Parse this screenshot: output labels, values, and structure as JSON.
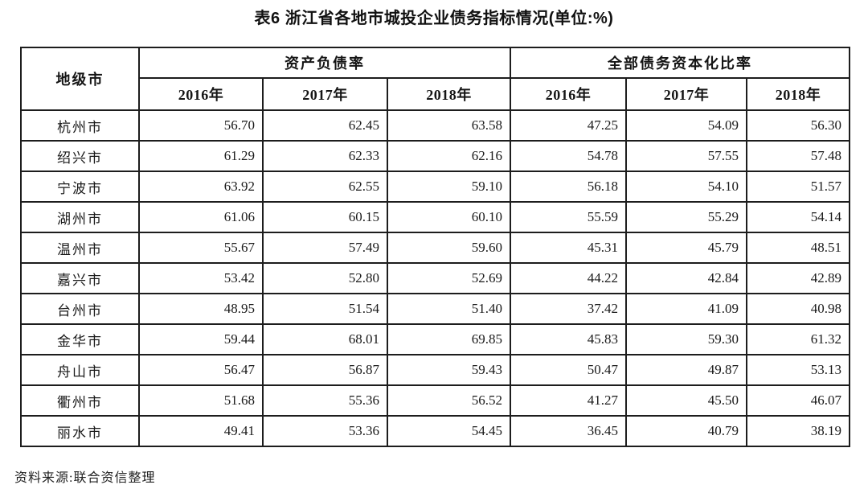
{
  "title": "表6  浙江省各地市城投企业债务指标情况(单位:%)",
  "table": {
    "city_header": "地级市",
    "group_headers": {
      "asset_liability": "资产负债率",
      "debt_capitalization": "全部债务资本化比率"
    },
    "year_headers": [
      "2016年",
      "2017年",
      "2018年"
    ],
    "rows": [
      {
        "city": "杭州市",
        "asset_liability_ratio": [
          "56.70",
          "62.45",
          "63.58"
        ],
        "debt_capitalization_ratio": [
          "47.25",
          "54.09",
          "56.30"
        ]
      },
      {
        "city": "绍兴市",
        "asset_liability_ratio": [
          "61.29",
          "62.33",
          "62.16"
        ],
        "debt_capitalization_ratio": [
          "54.78",
          "57.55",
          "57.48"
        ]
      },
      {
        "city": "宁波市",
        "asset_liability_ratio": [
          "63.92",
          "62.55",
          "59.10"
        ],
        "debt_capitalization_ratio": [
          "56.18",
          "54.10",
          "51.57"
        ]
      },
      {
        "city": "湖州市",
        "asset_liability_ratio": [
          "61.06",
          "60.15",
          "60.10"
        ],
        "debt_capitalization_ratio": [
          "55.59",
          "55.29",
          "54.14"
        ]
      },
      {
        "city": "温州市",
        "asset_liability_ratio": [
          "55.67",
          "57.49",
          "59.60"
        ],
        "debt_capitalization_ratio": [
          "45.31",
          "45.79",
          "48.51"
        ]
      },
      {
        "city": "嘉兴市",
        "asset_liability_ratio": [
          "53.42",
          "52.80",
          "52.69"
        ],
        "debt_capitalization_ratio": [
          "44.22",
          "42.84",
          "42.89"
        ]
      },
      {
        "city": "台州市",
        "asset_liability_ratio": [
          "48.95",
          "51.54",
          "51.40"
        ],
        "debt_capitalization_ratio": [
          "37.42",
          "41.09",
          "40.98"
        ]
      },
      {
        "city": "金华市",
        "asset_liability_ratio": [
          "59.44",
          "68.01",
          "69.85"
        ],
        "debt_capitalization_ratio": [
          "45.83",
          "59.30",
          "61.32"
        ]
      },
      {
        "city": "舟山市",
        "asset_liability_ratio": [
          "56.47",
          "56.87",
          "59.43"
        ],
        "debt_capitalization_ratio": [
          "50.47",
          "49.87",
          "53.13"
        ]
      },
      {
        "city": "衢州市",
        "asset_liability_ratio": [
          "51.68",
          "55.36",
          "56.52"
        ],
        "debt_capitalization_ratio": [
          "41.27",
          "45.50",
          "46.07"
        ]
      },
      {
        "city": "丽水市",
        "asset_liability_ratio": [
          "49.41",
          "53.36",
          "54.45"
        ],
        "debt_capitalization_ratio": [
          "36.45",
          "40.79",
          "38.19"
        ]
      }
    ]
  },
  "source_note": "资料来源:联合资信整理"
}
